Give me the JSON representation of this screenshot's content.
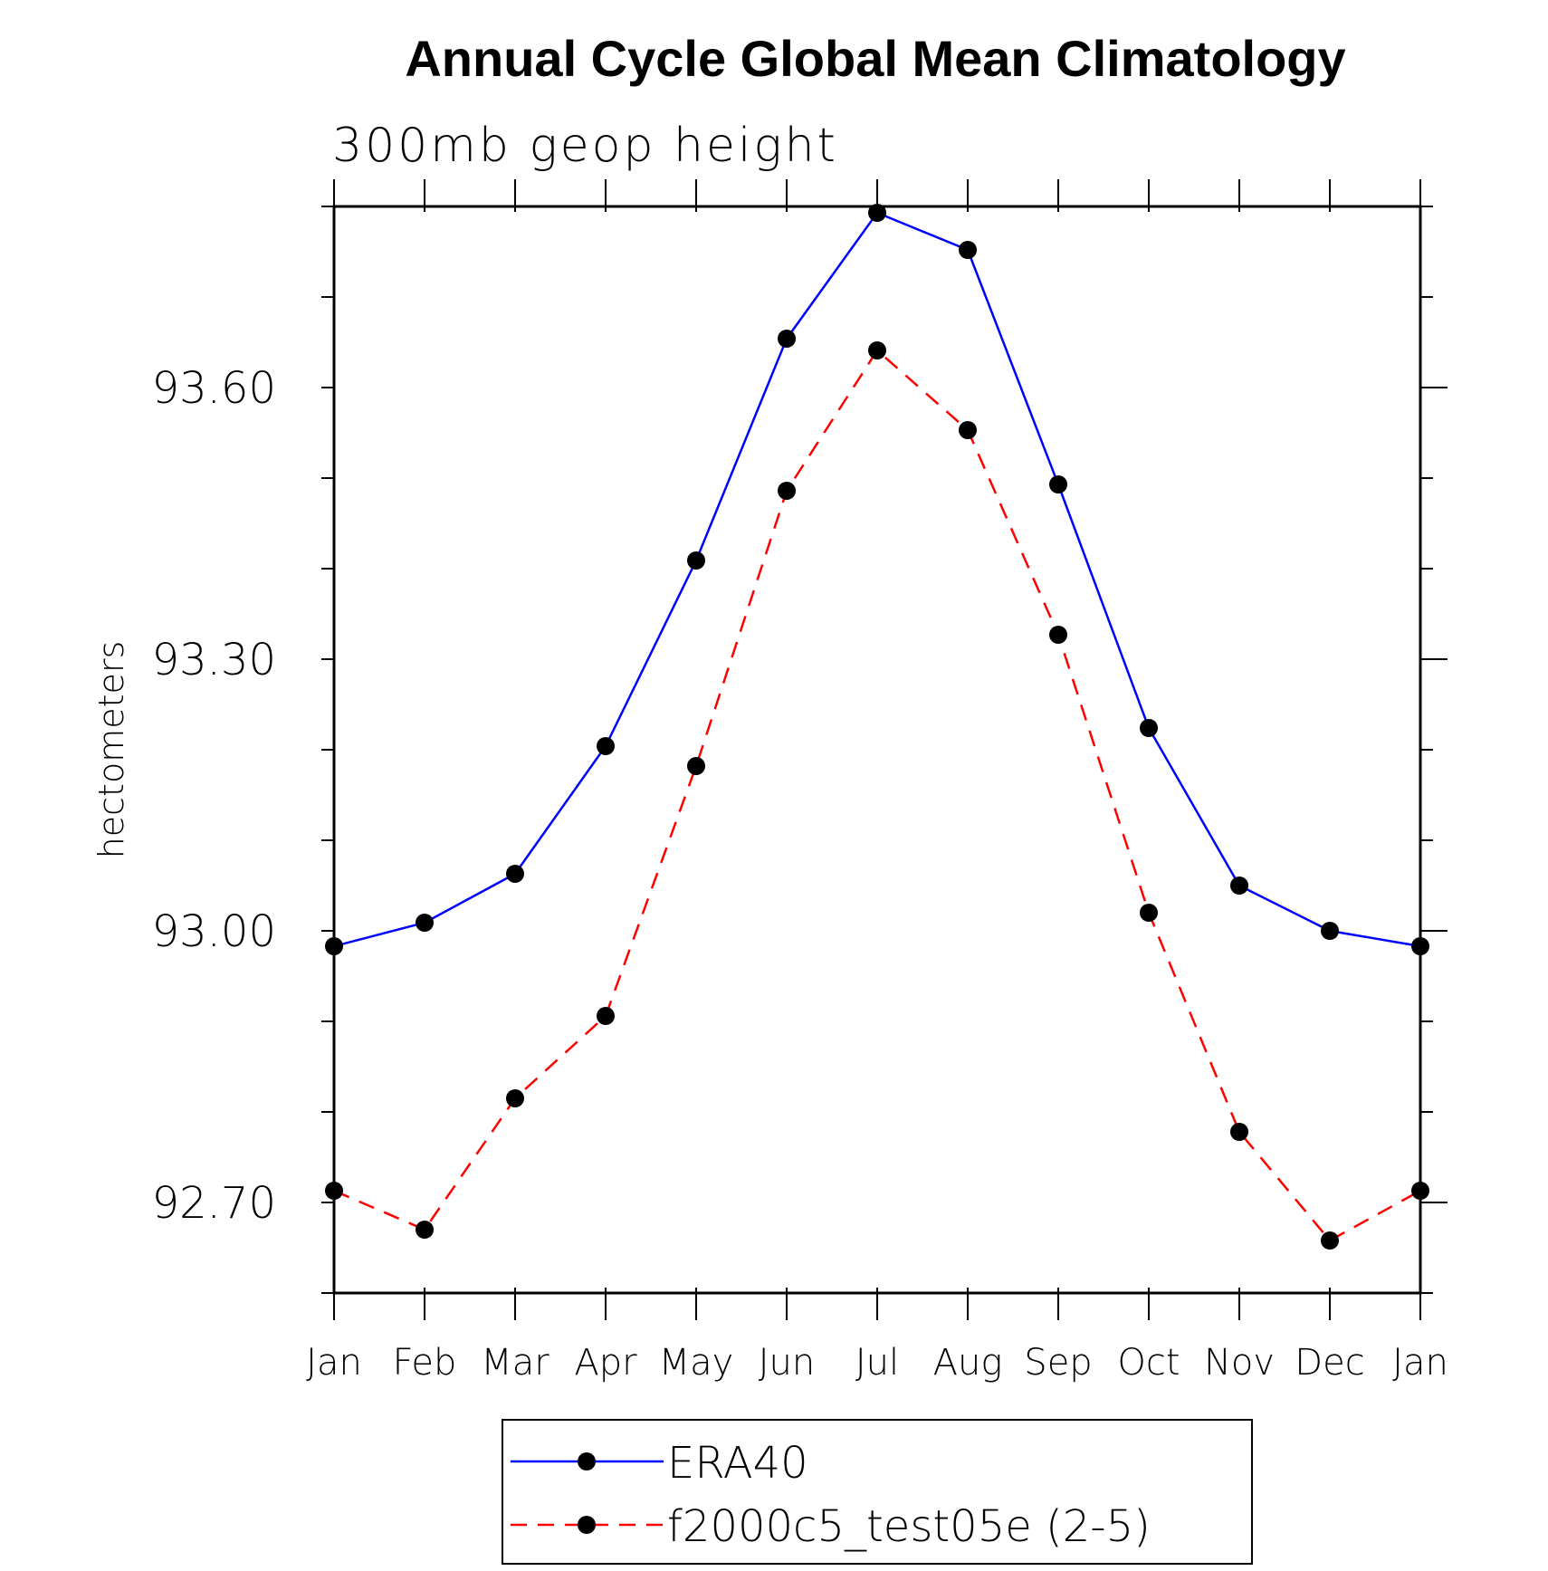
{
  "chart_data": {
    "type": "line",
    "title": "Annual Cycle Global Mean Climatology",
    "subtitle": "300mb geop height",
    "xlabel": "",
    "ylabel": "hectometers",
    "categories": [
      "Jan",
      "Feb",
      "Mar",
      "Apr",
      "May",
      "Jun",
      "Jul",
      "Aug",
      "Sep",
      "Oct",
      "Nov",
      "Dec",
      "Jan"
    ],
    "yticks": [
      92.7,
      93.0,
      93.3,
      93.6
    ],
    "ytick_labels": [
      "92.70",
      "93.00",
      "93.30",
      "93.60"
    ],
    "ylim": [
      92.6,
      93.8
    ],
    "y_minor_step": 0.1,
    "grid": false,
    "series": [
      {
        "name": "ERA40",
        "color": "#0000ff",
        "line_style": "solid",
        "marker": "filled-circle",
        "values": [
          92.983,
          93.009,
          93.063,
          93.204,
          93.409,
          93.654,
          93.793,
          93.752,
          93.493,
          93.224,
          93.05,
          93.0,
          92.983
        ]
      },
      {
        "name": "f2000c5_test05e (2-5)",
        "color": "#ff0000",
        "line_style": "dashed",
        "marker": "filled-circle",
        "values": [
          92.713,
          92.67,
          92.815,
          92.906,
          93.182,
          93.486,
          93.641,
          93.553,
          93.327,
          93.02,
          92.778,
          92.658,
          92.713
        ]
      }
    ],
    "legend_position": "bottom-center"
  }
}
